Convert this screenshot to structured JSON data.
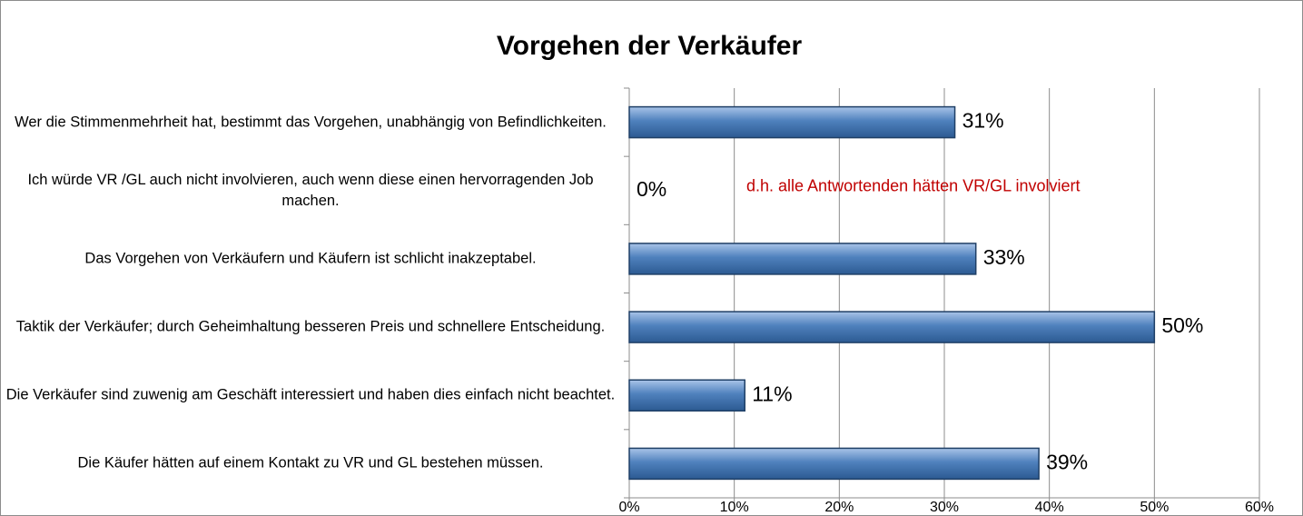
{
  "chart_data": {
    "type": "bar",
    "orientation": "horizontal",
    "title": "Vorgehen der Verkäufer",
    "categories": [
      "Wer die Stimmenmehrheit hat, bestimmt das Vorgehen, unabhängig von Befindlichkeiten.",
      "Ich würde VR /GL auch nicht involvieren, auch wenn diese einen hervorragenden Job machen.",
      "Das Vorgehen von Verkäufern und Käufern ist schlicht inakzeptabel.",
      "Taktik der Verkäufer; durch Geheimhaltung besseren Preis und schnellere Entscheidung.",
      "Die Verkäufer sind zuwenig am Geschäft interessiert und haben dies einfach nicht beachtet.",
      "Die Käufer hätten auf einem Kontakt zu VR und GL bestehen müssen."
    ],
    "values": [
      31,
      0,
      33,
      50,
      11,
      39
    ],
    "value_labels": [
      "31%",
      "0%",
      "33%",
      "50%",
      "11%",
      "39%"
    ],
    "color": "#4f81bd",
    "annotation": "d.h. alle Antwortenden hätten VR/GL involviert",
    "annotation_color": "#c00000",
    "xlim": [
      0,
      60
    ],
    "xticks": [
      {
        "value": 0,
        "label": "0%"
      },
      {
        "value": 10,
        "label": "10%"
      },
      {
        "value": 20,
        "label": "20%"
      },
      {
        "value": 30,
        "label": "30%"
      },
      {
        "value": 40,
        "label": "40%"
      },
      {
        "value": 50,
        "label": "50%"
      },
      {
        "value": 60,
        "label": "60%"
      }
    ],
    "grid": true
  }
}
